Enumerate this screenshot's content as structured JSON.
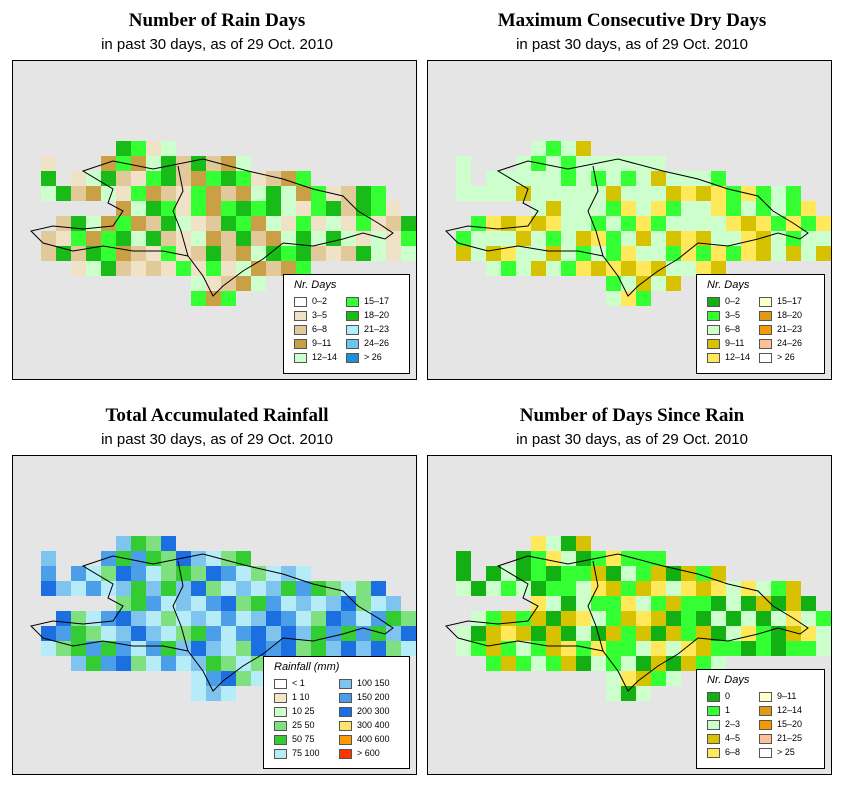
{
  "panels": [
    {
      "title": "Number of Rain Days",
      "subtitle": "in past 30 days, as of  29 Oct. 2010",
      "legend": {
        "title": "Nr. Days",
        "entries": [
          {
            "label": "0–2",
            "color": "#ffffff"
          },
          {
            "label": "3–5",
            "color": "#f0e2c6"
          },
          {
            "label": "6–8",
            "color": "#e1c99a"
          },
          {
            "label": "9–11",
            "color": "#c9a046"
          },
          {
            "label": "12–14",
            "color": "#ccffcc"
          },
          {
            "label": "15–17",
            "color": "#33ff33"
          },
          {
            "label": "18–20",
            "color": "#19bb19"
          },
          {
            "label": "21–23",
            "color": "#b0eef8"
          },
          {
            "label": "24–26",
            "color": "#6cc4ef"
          },
          {
            "label": "> 26",
            "color": "#1f8fd6"
          }
        ]
      }
    },
    {
      "title": "Maximum Consecutive Dry Days",
      "subtitle": "in past 30 days, as of  29 Oct. 2010",
      "legend": {
        "title": "Nr. Days",
        "entries": [
          {
            "label": "0–2",
            "color": "#12b012"
          },
          {
            "label": "3–5",
            "color": "#33ff33"
          },
          {
            "label": "6–8",
            "color": "#ccffcc"
          },
          {
            "label": "9–11",
            "color": "#d6c200"
          },
          {
            "label": "12–14",
            "color": "#ffe85a"
          },
          {
            "label": "15–17",
            "color": "#ffffc8"
          },
          {
            "label": "18–20",
            "color": "#e09a14"
          },
          {
            "label": "21–23",
            "color": "#f59a00"
          },
          {
            "label": "24–26",
            "color": "#ffbf99"
          },
          {
            "label": "> 26",
            "color": "#ffffff"
          }
        ]
      }
    },
    {
      "title": "Total Accumulated Rainfall",
      "subtitle": "in past 30 days, as of  29 Oct. 2010",
      "legend": {
        "title": "Rainfall (mm)",
        "entries": [
          {
            "label": "< 1",
            "color": "#ffffff"
          },
          {
            "label": "1   10",
            "color": "#f5e6c8"
          },
          {
            "label": "10   25",
            "color": "#ccffcc"
          },
          {
            "label": "25   50",
            "color": "#7fe07f"
          },
          {
            "label": "50   75",
            "color": "#33cc33"
          },
          {
            "label": "75   100",
            "color": "#b5ecf8"
          },
          {
            "label": "100   150",
            "color": "#7fc4ef"
          },
          {
            "label": "150   200",
            "color": "#4a9fe8"
          },
          {
            "label": "200   300",
            "color": "#1c6fe0"
          },
          {
            "label": "300   400",
            "color": "#ffe36b"
          },
          {
            "label": "400   600",
            "color": "#ff9900"
          },
          {
            "label": "> 600",
            "color": "#ff3300"
          }
        ]
      }
    },
    {
      "title": "Number of Days Since Rain",
      "subtitle": "in past 30 days, as of  29 Oct. 2010",
      "legend": {
        "title": "Nr. Days",
        "entries": [
          {
            "label": "0",
            "color": "#12b012"
          },
          {
            "label": "1",
            "color": "#33ff33"
          },
          {
            "label": "2–3",
            "color": "#ccffcc"
          },
          {
            "label": "4–5",
            "color": "#d6c200"
          },
          {
            "label": "6–8",
            "color": "#ffe85a"
          },
          {
            "label": "9–11",
            "color": "#ffffc8"
          },
          {
            "label": "12–14",
            "color": "#e09a14"
          },
          {
            "label": "15–20",
            "color": "#f59a00"
          },
          {
            "label": "21–25",
            "color": "#ffbf99"
          },
          {
            "label": "> 25",
            "color": "#ffffff"
          }
        ]
      }
    }
  ]
}
